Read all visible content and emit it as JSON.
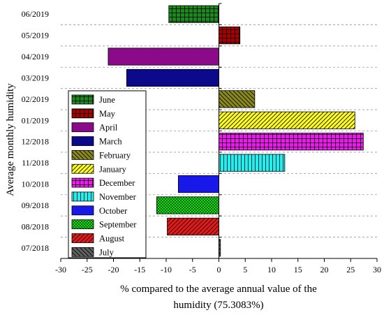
{
  "chart_data": {
    "type": "bar",
    "orientation": "horizontal",
    "title": "",
    "xlabel_lines": [
      "% compared to the average annual value of the",
      "humidity (75.3083%)"
    ],
    "ylabel": "Average monthly humidity",
    "xlim": [
      -30,
      30
    ],
    "xticks": [
      -30,
      -25,
      -20,
      -15,
      -10,
      -5,
      0,
      5,
      10,
      15,
      20,
      25,
      30
    ],
    "grid": "horizontal dashed",
    "legend_position": "left",
    "categories": [
      "06/2019",
      "05/2019",
      "04/2019",
      "03/2019",
      "02/2019",
      "01/2019",
      "12/2018",
      "11/2018",
      "10/2018",
      "09/2018",
      "08/2018",
      "07/2018"
    ],
    "series_names": [
      "June",
      "May",
      "April",
      "March",
      "February",
      "January",
      "December",
      "November",
      "October",
      "September",
      "August",
      "July"
    ],
    "values": [
      -9.5,
      4.0,
      -21.0,
      -17.5,
      6.8,
      25.8,
      27.4,
      12.5,
      -7.7,
      -11.8,
      -9.8,
      0.3
    ],
    "colors": [
      "#1a8a1a",
      "#a80000",
      "#8a0a8a",
      "#0a0a8a",
      "#8a8a1c",
      "#ffff20",
      "#f018f0",
      "#20f0f0",
      "#1818e8",
      "#18d818",
      "#e81818",
      "#606060"
    ],
    "patterns": [
      "vgrid",
      "vgrid",
      "solid",
      "solid",
      "diag-left",
      "diag-right",
      "grid",
      "vlines",
      "solid",
      "checker",
      "diag-right",
      "diag-left"
    ]
  }
}
